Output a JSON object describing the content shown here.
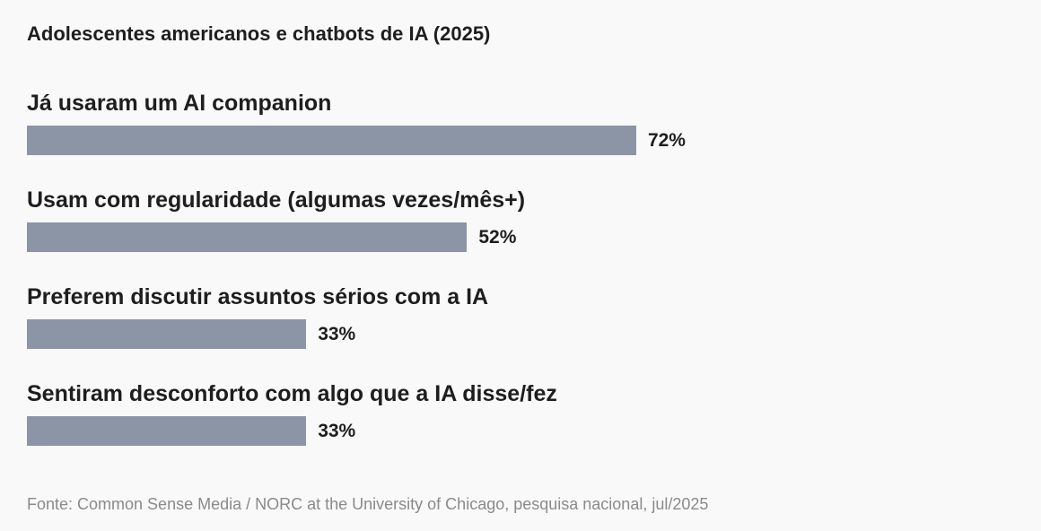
{
  "chart_data": {
    "type": "bar",
    "orientation": "horizontal",
    "title": "Adolescentes americanos e chatbots de IA (2025)",
    "categories": [
      "Já usaram um AI companion",
      "Usam com regularidade (algumas vezes/mês+)",
      "Preferem discutir assuntos sérios com a IA",
      "Sentiram desconforto com algo que a IA disse/fez"
    ],
    "values": [
      72,
      52,
      33,
      33
    ],
    "value_labels": [
      "72%",
      "52%",
      "33%",
      "33%"
    ],
    "unit": "%",
    "xlim": [
      0,
      100
    ],
    "grid": false,
    "legend": "none",
    "bar_color": "#8c95a5",
    "source": "Fonte: Common Sense Media / NORC at the University of Chicago, pesquisa nacional, jul/2025"
  }
}
